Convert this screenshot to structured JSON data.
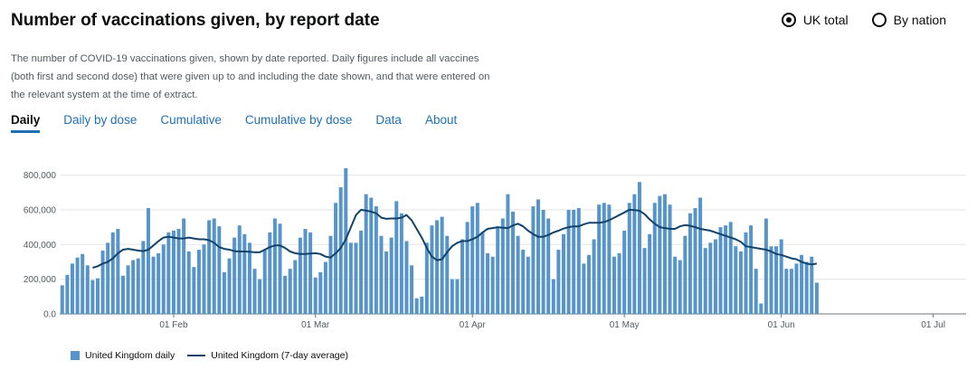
{
  "header": {
    "title": "Number of vaccinations given, by report date"
  },
  "radios": [
    {
      "label": "UK total",
      "checked": true
    },
    {
      "label": "By nation",
      "checked": false
    }
  ],
  "description": "The number of COVID-19 vaccinations given, shown by date reported. Daily figures include all vaccines (both first and second dose) that were given up to and including the date shown, and that were entered on the relevant system at the time of extract.",
  "tabs": [
    {
      "label": "Daily",
      "active": true
    },
    {
      "label": "Daily by dose",
      "active": false
    },
    {
      "label": "Cumulative",
      "active": false
    },
    {
      "label": "Cumulative by dose",
      "active": false
    },
    {
      "label": "Data",
      "active": false
    },
    {
      "label": "About",
      "active": false
    }
  ],
  "colors": {
    "bar": "#5694ca",
    "line": "#12436d",
    "accent": "#1d70b8"
  },
  "chart_data": {
    "type": "bar",
    "x_start": "2021-01-10",
    "x_end": "2021-07-07",
    "x_ticks": [
      {
        "date": "2021-02-01",
        "label": "01 Feb"
      },
      {
        "date": "2021-03-01",
        "label": "01 Mar"
      },
      {
        "date": "2021-04-01",
        "label": "01 Apr"
      },
      {
        "date": "2021-05-01",
        "label": "01 May"
      },
      {
        "date": "2021-06-01",
        "label": "01 Jun"
      },
      {
        "date": "2021-07-01",
        "label": "01 Jul"
      }
    ],
    "y_ticks": [
      {
        "value": 0,
        "label": "0.0"
      },
      {
        "value": 200000,
        "label": "200,000"
      },
      {
        "value": 400000,
        "label": "400,000"
      },
      {
        "value": 600000,
        "label": "600,000"
      },
      {
        "value": 800000,
        "label": "800,000"
      }
    ],
    "ylim": [
      0,
      850000
    ],
    "grid": true,
    "series": [
      {
        "name": "United Kingdom daily",
        "type": "bar",
        "values": [
          165000,
          225000,
          290000,
          325000,
          345000,
          280000,
          195000,
          205000,
          365000,
          410000,
          470000,
          490000,
          220000,
          280000,
          310000,
          320000,
          420000,
          610000,
          330000,
          350000,
          400000,
          470000,
          480000,
          490000,
          550000,
          360000,
          270000,
          370000,
          400000,
          540000,
          550000,
          505000,
          240000,
          320000,
          440000,
          510000,
          460000,
          410000,
          260000,
          200000,
          370000,
          470000,
          550000,
          520000,
          220000,
          260000,
          310000,
          440000,
          490000,
          470000,
          210000,
          240000,
          300000,
          450000,
          640000,
          730000,
          840000,
          410000,
          410000,
          480000,
          690000,
          670000,
          620000,
          450000,
          360000,
          440000,
          650000,
          580000,
          420000,
          280000,
          90000,
          100000,
          410000,
          510000,
          540000,
          560000,
          450000,
          200000,
          200000,
          430000,
          530000,
          620000,
          640000,
          470000,
          350000,
          330000,
          500000,
          550000,
          690000,
          590000,
          450000,
          370000,
          330000,
          620000,
          660000,
          600000,
          550000,
          200000,
          370000,
          460000,
          600000,
          600000,
          610000,
          290000,
          340000,
          430000,
          630000,
          640000,
          630000,
          330000,
          350000,
          480000,
          640000,
          690000,
          760000,
          380000,
          460000,
          640000,
          680000,
          690000,
          630000,
          330000,
          310000,
          450000,
          580000,
          610000,
          670000,
          380000,
          410000,
          430000,
          500000,
          510000,
          530000,
          390000,
          360000,
          470000,
          510000,
          260000,
          60000,
          550000,
          390000,
          390000,
          430000,
          260000,
          260000,
          290000,
          340000,
          300000,
          330000,
          180000
        ]
      },
      {
        "name": "United Kingdom (7-day average)",
        "type": "line",
        "start_index": 6,
        "values": [
          266000,
          275000,
          290000,
          300000,
          320000,
          350000,
          370000,
          375000,
          370000,
          365000,
          362000,
          370000,
          395000,
          420000,
          440000,
          445000,
          440000,
          435000,
          435000,
          440000,
          435000,
          430000,
          430000,
          425000,
          410000,
          385000,
          375000,
          370000,
          362000,
          360000,
          360000,
          358000,
          355000,
          355000,
          370000,
          385000,
          395000,
          395000,
          380000,
          360000,
          350000,
          345000,
          345000,
          348000,
          350000,
          345000,
          330000,
          325000,
          350000,
          380000,
          430000,
          500000,
          570000,
          600000,
          595000,
          590000,
          580000,
          555000,
          548000,
          550000,
          550000,
          555000,
          570000,
          540000,
          490000,
          440000,
          380000,
          330000,
          310000,
          315000,
          355000,
          390000,
          410000,
          420000,
          420000,
          430000,
          445000,
          470000,
          490000,
          495000,
          500000,
          497000,
          495000,
          510000,
          520000,
          505000,
          480000,
          460000,
          445000,
          445000,
          455000,
          470000,
          480000,
          492000,
          500000,
          505000,
          505000,
          517000,
          525000,
          525000,
          525000,
          530000,
          540000,
          555000,
          570000,
          585000,
          600000,
          598000,
          595000,
          575000,
          545000,
          520000,
          500000,
          495000,
          490000,
          490000,
          505000,
          512000,
          508000,
          500000,
          490000,
          485000,
          480000,
          470000,
          460000,
          450000,
          440000,
          430000,
          415000,
          390000,
          385000,
          380000,
          375000,
          370000,
          360000,
          345000,
          340000,
          330000,
          320000,
          315000,
          300000,
          290000,
          285000,
          290000
        ]
      }
    ]
  }
}
